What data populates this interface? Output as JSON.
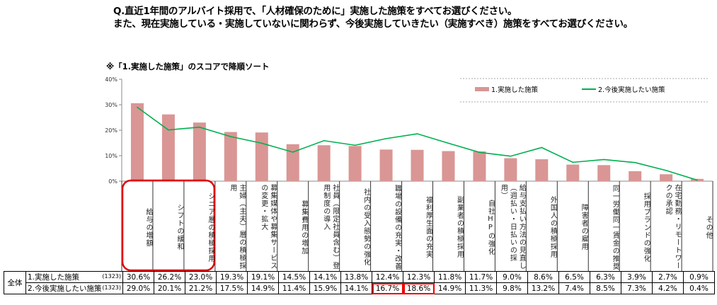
{
  "header": {
    "question_line1": "Q.直近1年間のアルバイト採用で、「人材確保のために」実施した施策をすべてお選びください。",
    "question_line2": "また、現在実施している・実施していないに関わらず、今後実施していきたい（実施すべき）施策をすべてお選びください。",
    "note": "※「1.実施した施策」のスコアで降順ソート"
  },
  "chart_data": {
    "type": "bar+line",
    "ylim": [
      0,
      40
    ],
    "yticks": [
      "0%",
      "10%",
      "20%",
      "30%",
      "40%"
    ],
    "legend_position": "top-right",
    "categories": [
      "給与の増額",
      "シフトの緩和",
      "シニア層の積極採用",
      "主婦（主夫）層の積極採用",
      "募集媒体や募集サービスの変更・拡大",
      "募集費用の増加",
      "社員（限定社員含む）登用制度の導入",
      "社内の受入態勢の強化",
      "職場の設備の充実・改善",
      "福利厚生面の充実",
      "副業者の積極採用",
      "自社HPの強化",
      "給与支払い方法の見直し（週払い・日払いの採用）",
      "外国人の積極採用",
      "障害者の雇用",
      "同一労働同一賃金の推奨",
      "採用ブランドの強化",
      "在宅勤務・リモートワークの承認",
      "その他"
    ],
    "series": [
      {
        "name": "1.実施した施策",
        "type": "bar",
        "color": "#d99694",
        "values": [
          30.6,
          26.2,
          23.0,
          19.3,
          19.1,
          14.5,
          14.1,
          13.8,
          12.4,
          12.3,
          11.8,
          11.7,
          9.0,
          8.6,
          6.5,
          6.3,
          3.9,
          2.7,
          0.9
        ]
      },
      {
        "name": "2.今後実施したい施策",
        "type": "line",
        "color": "#00b050",
        "values": [
          29.0,
          20.1,
          21.2,
          17.5,
          14.9,
          11.4,
          15.9,
          14.1,
          16.7,
          18.6,
          14.9,
          11.3,
          9.8,
          13.2,
          7.4,
          8.5,
          7.3,
          4.2,
          0.4
        ]
      }
    ]
  },
  "table": {
    "group": "全体",
    "rows": [
      {
        "label": "1.実施した施策",
        "n": "(1323)",
        "values": [
          "30.6%",
          "26.2%",
          "23.0%",
          "19.3%",
          "19.1%",
          "14.5%",
          "14.1%",
          "13.8%",
          "12.4%",
          "12.3%",
          "11.8%",
          "11.7%",
          "9.0%",
          "8.6%",
          "6.5%",
          "6.3%",
          "3.9%",
          "2.7%",
          "0.9%"
        ]
      },
      {
        "label": "2.今後実施したい施策",
        "n": "(1323)",
        "values": [
          "29.0%",
          "20.1%",
          "21.2%",
          "17.5%",
          "14.9%",
          "11.4%",
          "15.9%",
          "14.1%",
          "16.7%",
          "18.6%",
          "14.9%",
          "11.3%",
          "9.8%",
          "13.2%",
          "7.4%",
          "8.5%",
          "7.3%",
          "4.2%",
          "0.4%"
        ]
      }
    ]
  },
  "highlight_color": "#e00000"
}
